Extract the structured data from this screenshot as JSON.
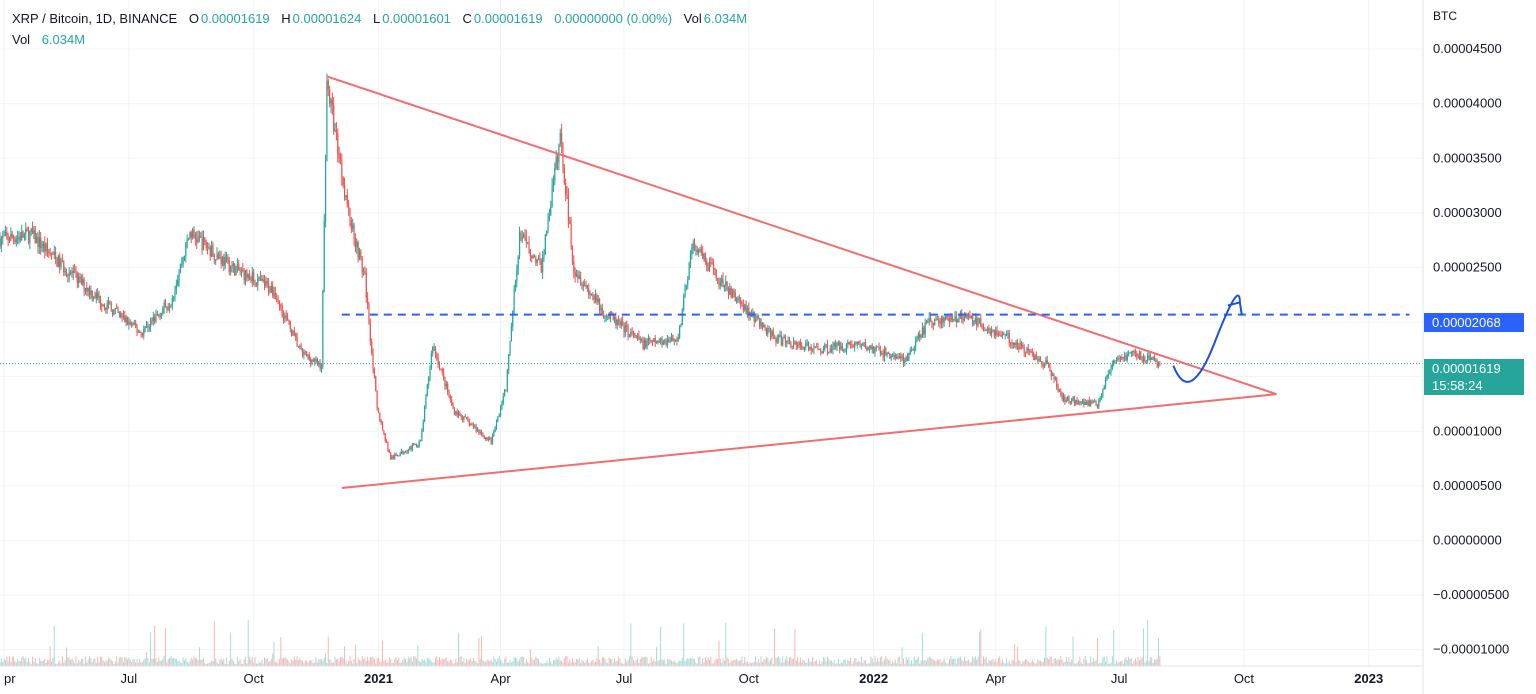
{
  "legend": {
    "symbol": "XRP / Bitcoin, 1D, BINANCE",
    "o_label": "O",
    "o_value": "0.00001619",
    "h_label": "H",
    "h_value": "0.00001624",
    "l_label": "L",
    "l_value": "0.00001601",
    "c_label": "C",
    "c_value": "0.00001619",
    "change": "0.00000000 (0.00%)",
    "vol_label": "Vol",
    "vol_value": "6.034M"
  },
  "price_tags": {
    "level_value": "0.00002068",
    "last_value": "0.00001619",
    "countdown": "15:58:24"
  },
  "colors": {
    "up": "#26a69a",
    "down": "#ef5350",
    "triangle": "#f26d6d",
    "level": "#2962ff",
    "arrow": "#1e4fd8",
    "grid": "#f0f3fa"
  },
  "chart_data": {
    "type": "candlestick",
    "unit_label": "BTC",
    "y_ticks": [
      "0.00004500",
      "0.00004000",
      "0.00003500",
      "0.00003000",
      "0.00002500",
      "0.00002000",
      "0.00001500",
      "0.00001000",
      "0.00000500",
      "0.00000000",
      "−0.00000500",
      "−0.00001000"
    ],
    "y_tick_values": [
      4.5e-05,
      4e-05,
      3.5e-05,
      3e-05,
      2.5e-05,
      2e-05,
      1.5e-05,
      1e-05,
      5e-06,
      0,
      -5e-06,
      -1e-05
    ],
    "ylim": [
      -1.15e-05,
      4.95e-05
    ],
    "x_ticks": [
      "pr",
      "Jul",
      "Oct",
      "2021",
      "Apr",
      "Jul",
      "Oct",
      "2022",
      "Apr",
      "Jul",
      "Oct",
      "2023"
    ],
    "x_tick_dates": [
      "2020-04-01",
      "2020-07-01",
      "2020-10-01",
      "2021-01-01",
      "2021-04-01",
      "2021-07-01",
      "2021-10-01",
      "2022-01-01",
      "2022-04-01",
      "2022-07-01",
      "2022-10-01",
      "2023-01-01"
    ],
    "xlim": [
      "2020-03-28",
      "2023-02-10"
    ],
    "price_path": [
      {
        "date": "2020-03-28",
        "price": 2.76e-05
      },
      {
        "date": "2020-04-20",
        "price": 2.8e-05
      },
      {
        "date": "2020-05-10",
        "price": 2.55e-05
      },
      {
        "date": "2020-06-10",
        "price": 2.2e-05
      },
      {
        "date": "2020-07-10",
        "price": 1.9e-05
      },
      {
        "date": "2020-08-01",
        "price": 2.2e-05
      },
      {
        "date": "2020-08-15",
        "price": 2.82e-05
      },
      {
        "date": "2020-09-15",
        "price": 2.5e-05
      },
      {
        "date": "2020-10-15",
        "price": 2.3e-05
      },
      {
        "date": "2020-11-05",
        "price": 1.72e-05
      },
      {
        "date": "2020-11-20",
        "price": 1.6e-05
      },
      {
        "date": "2020-11-24",
        "price": 4.2e-05
      },
      {
        "date": "2020-12-10",
        "price": 3e-05
      },
      {
        "date": "2020-12-22",
        "price": 2.4e-05
      },
      {
        "date": "2020-12-31",
        "price": 1.2e-05
      },
      {
        "date": "2021-01-10",
        "price": 7.5e-06
      },
      {
        "date": "2021-02-01",
        "price": 9e-06
      },
      {
        "date": "2021-02-10",
        "price": 1.8e-05
      },
      {
        "date": "2021-02-25",
        "price": 1.2e-05
      },
      {
        "date": "2021-03-25",
        "price": 9e-06
      },
      {
        "date": "2021-04-05",
        "price": 1.4e-05
      },
      {
        "date": "2021-04-15",
        "price": 2.8e-05
      },
      {
        "date": "2021-05-01",
        "price": 2.5e-05
      },
      {
        "date": "2021-05-15",
        "price": 3.7e-05
      },
      {
        "date": "2021-05-25",
        "price": 2.5e-05
      },
      {
        "date": "2021-06-15",
        "price": 2.1e-05
      },
      {
        "date": "2021-07-15",
        "price": 1.8e-05
      },
      {
        "date": "2021-08-10",
        "price": 1.85e-05
      },
      {
        "date": "2021-08-20",
        "price": 2.7e-05
      },
      {
        "date": "2021-09-15",
        "price": 2.3e-05
      },
      {
        "date": "2021-10-20",
        "price": 1.85e-05
      },
      {
        "date": "2021-11-20",
        "price": 1.75e-05
      },
      {
        "date": "2021-12-20",
        "price": 1.8e-05
      },
      {
        "date": "2022-01-25",
        "price": 1.65e-05
      },
      {
        "date": "2022-02-10",
        "price": 2e-05
      },
      {
        "date": "2022-03-10",
        "price": 2.05e-05
      },
      {
        "date": "2022-04-10",
        "price": 1.85e-05
      },
      {
        "date": "2022-05-10",
        "price": 1.6e-05
      },
      {
        "date": "2022-05-20",
        "price": 1.3e-05
      },
      {
        "date": "2022-06-15",
        "price": 1.25e-05
      },
      {
        "date": "2022-06-25",
        "price": 1.6e-05
      },
      {
        "date": "2022-07-10",
        "price": 1.72e-05
      },
      {
        "date": "2022-07-31",
        "price": 1.62e-05
      }
    ],
    "annotations": {
      "triangle_upper": [
        {
          "date": "2020-11-24",
          "price": 4.25e-05
        },
        {
          "date": "2022-10-25",
          "price": 1.34e-05
        }
      ],
      "triangle_lower": [
        {
          "date": "2020-12-05",
          "price": 4.8e-06
        },
        {
          "date": "2022-10-25",
          "price": 1.34e-05
        }
      ],
      "level_line": {
        "price": 2.068e-05,
        "from": "2020-12-05",
        "to": "2023-01-31"
      },
      "arrow": {
        "start": {
          "date": "2022-08-10",
          "price": 1.6e-05
        },
        "trough": {
          "date": "2022-08-22",
          "price": 1.45e-05
        },
        "end": {
          "date": "2022-09-28",
          "price": 2.18e-05
        }
      }
    },
    "volume_label": "Vol",
    "grid": true
  }
}
